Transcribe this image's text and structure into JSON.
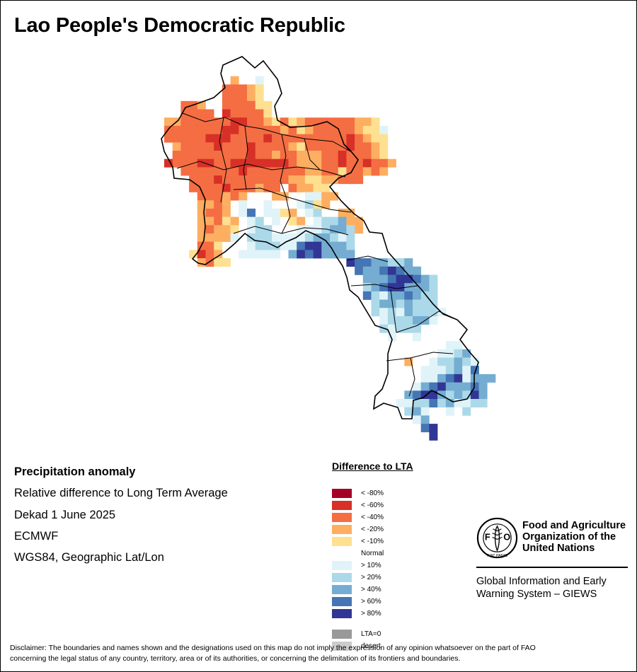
{
  "title": "Lao People's Democratic Republic",
  "info": {
    "heading": "Precipitation anomaly",
    "line1": "Relative difference to Long Term Average",
    "line2": "Dekad 1 June 2025",
    "line3": "ECMWF",
    "line4": "WGS84, Geographic Lat/Lon"
  },
  "legend": {
    "title": "Difference to LTA",
    "classes": [
      {
        "label": "< -80%",
        "color": "#a50026"
      },
      {
        "label": "< -60%",
        "color": "#d73027"
      },
      {
        "label": "< -40%",
        "color": "#f46d43"
      },
      {
        "label": "< -20%",
        "color": "#fdae61"
      },
      {
        "label": "< -10%",
        "color": "#fee090"
      },
      {
        "label": "Normal",
        "color": "#ffffff"
      },
      {
        "label": "> 10%",
        "color": "#e0f3f8"
      },
      {
        "label": "> 20%",
        "color": "#abd9e9"
      },
      {
        "label": "> 40%",
        "color": "#74add1"
      },
      {
        "label": "> 60%",
        "color": "#4575b4"
      },
      {
        "label": "> 80%",
        "color": "#313695"
      }
    ],
    "extra": [
      {
        "label": "LTA=0",
        "color": "#999999"
      },
      {
        "label": "desert",
        "color": "#cccccc"
      }
    ]
  },
  "org": {
    "line1": "Food and Agriculture",
    "line2": "Organization of the",
    "line3": "United Nations",
    "giews1": "Global Information and Early",
    "giews2": "Warning System – GIEWS",
    "logo_letters": "FAO",
    "logo_motto": "FIAT PANIS"
  },
  "disclaimer1": "Disclaimer: The boundaries and names shown and the designations used on this map do not imply the expression of any opinion whatsoever on the part of FAO",
  "disclaimer2": "concerning the legal status of any country, territory, area or of its authorities, or concerning the delimitation of its frontiers and boundaries.",
  "map_grid": {
    "note_key": "class index per cell: 0=<-80 1=<-60 2=<-40 3=<-20 4=<-10 5=Normal 6=>10 7=>20 8=>40 9=>60 10=>80",
    "rows": [
      {
        "r": 0,
        "c0": 8,
        "v": [
          5,
          5,
          5
        ]
      },
      {
        "r": 1,
        "c0": 7,
        "v": [
          5,
          3,
          5,
          5,
          6,
          5
        ]
      },
      {
        "r": 2,
        "c0": 7,
        "v": [
          2,
          2,
          2,
          3,
          4,
          5
        ]
      },
      {
        "r": 3,
        "c0": 7,
        "v": [
          2,
          2,
          2,
          3,
          4,
          5
        ]
      },
      {
        "r": 4,
        "c0": 2,
        "v": [
          2,
          2,
          3,
          5,
          5,
          2,
          2,
          2,
          2,
          4,
          4,
          5
        ]
      },
      {
        "r": 5,
        "c0": 2,
        "v": [
          2,
          2,
          2,
          2,
          5,
          1,
          2,
          2,
          2,
          2,
          4,
          5
        ]
      },
      {
        "r": 6,
        "c0": 0,
        "v": [
          3,
          3,
          2,
          2,
          2,
          2,
          2,
          2,
          1,
          1,
          2,
          2,
          3,
          4,
          2,
          4,
          3,
          2,
          2,
          2,
          2,
          2,
          2,
          3,
          3,
          4
        ]
      },
      {
        "r": 7,
        "c0": 0,
        "v": [
          2,
          2,
          2,
          2,
          2,
          2,
          2,
          1,
          1,
          2,
          2,
          2,
          2,
          2,
          3,
          2,
          4,
          3,
          2,
          2,
          2,
          2,
          2,
          3,
          4,
          4,
          6
        ]
      },
      {
        "r": 8,
        "c0": 0,
        "v": [
          2,
          2,
          2,
          2,
          2,
          1,
          1,
          1,
          2,
          2,
          2,
          2,
          1,
          2,
          2,
          2,
          2,
          2,
          2,
          2,
          2,
          2,
          1,
          2,
          3,
          4,
          4,
          5
        ]
      },
      {
        "r": 9,
        "c0": 0,
        "v": [
          5,
          3,
          2,
          2,
          2,
          2,
          1,
          2,
          2,
          2,
          1,
          2,
          2,
          2,
          2,
          3,
          4,
          2,
          2,
          2,
          2,
          2,
          1,
          2,
          2,
          3,
          4,
          5
        ]
      },
      {
        "r": 10,
        "c0": 1,
        "v": [
          2,
          2,
          2,
          2,
          2,
          2,
          2,
          2,
          2,
          1,
          2,
          2,
          3,
          2,
          2,
          3,
          3,
          3,
          2,
          2,
          1,
          2,
          2,
          2,
          3,
          4
        ]
      },
      {
        "r": 11,
        "c0": 0,
        "v": [
          1,
          2,
          2,
          2,
          1,
          1,
          2,
          2,
          1,
          1,
          1,
          1,
          1,
          1,
          1,
          2,
          3,
          3,
          3,
          2,
          2,
          1,
          2,
          2,
          1,
          2,
          2,
          3
        ]
      },
      {
        "r": 12,
        "c0": 2,
        "v": [
          2,
          2,
          2,
          2,
          2,
          2,
          2,
          1,
          2,
          2,
          2,
          2,
          2,
          2,
          2,
          3,
          3,
          2,
          2,
          4,
          2,
          2,
          3,
          2,
          3
        ]
      },
      {
        "r": 13,
        "c0": 3,
        "v": [
          2,
          2,
          2,
          1,
          2,
          2,
          2,
          2,
          2,
          2,
          2,
          2,
          3,
          3,
          4,
          4,
          3,
          3,
          2,
          2,
          2
        ]
      },
      {
        "r": 14,
        "c0": 3,
        "v": [
          2,
          2,
          2,
          2,
          1,
          2,
          2,
          2,
          3,
          2,
          2,
          5,
          2,
          3,
          3,
          4,
          4
        ]
      },
      {
        "r": 15,
        "c0": 4,
        "v": [
          2,
          2,
          2,
          3,
          2,
          3,
          5,
          5,
          5,
          3,
          3,
          5,
          5,
          6,
          6,
          3,
          3
        ]
      },
      {
        "r": 16,
        "c0": 4,
        "v": [
          3,
          3,
          2,
          3,
          5,
          6,
          5,
          5,
          6,
          5,
          5,
          5,
          6,
          7,
          4,
          3,
          5
        ]
      },
      {
        "r": 17,
        "c0": 4,
        "v": [
          3,
          2,
          2,
          3,
          5,
          6,
          9,
          5,
          6,
          6,
          4,
          3,
          5,
          6,
          7,
          5,
          5,
          3,
          3
        ]
      },
      {
        "r": 18,
        "c0": 4,
        "v": [
          3,
          3,
          2,
          4,
          3,
          5,
          6,
          7,
          5,
          6,
          5,
          4,
          3,
          5,
          6,
          7,
          7,
          8,
          3,
          3
        ]
      },
      {
        "r": 19,
        "c0": 4,
        "v": [
          3,
          2,
          3,
          3,
          4,
          5,
          6,
          7,
          7,
          5,
          5,
          5,
          6,
          6,
          6,
          7,
          8,
          8,
          7,
          3
        ]
      },
      {
        "r": 20,
        "c0": 4,
        "v": [
          3,
          3,
          3,
          3,
          6,
          5,
          7,
          7,
          7,
          6,
          6,
          6,
          6,
          7,
          8,
          8,
          7,
          6,
          7
        ]
      },
      {
        "r": 21,
        "c0": 4,
        "v": [
          2,
          2,
          4,
          5,
          5,
          5,
          6,
          7,
          7,
          7,
          6,
          6,
          9,
          10,
          10,
          8,
          8,
          8,
          7
        ]
      },
      {
        "r": 22,
        "c0": 3,
        "v": [
          4,
          1,
          2,
          3,
          5,
          5,
          6,
          6,
          6,
          6,
          6,
          5,
          8,
          10,
          9,
          10,
          8,
          8,
          8,
          8
        ]
      },
      {
        "r": 23,
        "c0": 4,
        "v": [
          3,
          2,
          4,
          4
        ]
      },
      {
        "r": 23,
        "c0": 22,
        "v": [
          10,
          9,
          9,
          8,
          8,
          7,
          7,
          8
        ]
      },
      {
        "r": 24,
        "c0": 23,
        "v": [
          9,
          8,
          8,
          9,
          10,
          9,
          8,
          8
        ]
      },
      {
        "r": 25,
        "c0": 24,
        "v": [
          8,
          8,
          8,
          9,
          10,
          10,
          9,
          8,
          7
        ]
      },
      {
        "r": 26,
        "c0": 24,
        "v": [
          7,
          8,
          9,
          10,
          10,
          8,
          8,
          8,
          7
        ]
      },
      {
        "r": 27,
        "c0": 24,
        "v": [
          9,
          7,
          6,
          8,
          8,
          9,
          8,
          7,
          7
        ]
      },
      {
        "r": 28,
        "c0": 25,
        "v": [
          7,
          8,
          8,
          7,
          8,
          7,
          7,
          7
        ]
      },
      {
        "r": 29,
        "c0": 25,
        "v": [
          7,
          6,
          7,
          6,
          8,
          7,
          7,
          7,
          6
        ]
      },
      {
        "r": 30,
        "c0": 26,
        "v": [
          6,
          7,
          7,
          7,
          8,
          8,
          6
        ]
      },
      {
        "r": 31,
        "c0": 26,
        "v": [
          7,
          6,
          7,
          7,
          7,
          5,
          5
        ]
      },
      {
        "r": 32,
        "c0": 27,
        "v": [
          6,
          5,
          5,
          6,
          5,
          5,
          5,
          5,
          5
        ]
      },
      {
        "r": 33,
        "c0": 28,
        "v": [
          5,
          5,
          5,
          5,
          5,
          5,
          6,
          6
        ]
      },
      {
        "r": 34,
        "c0": 29,
        "v": [
          5,
          5,
          5,
          5,
          6,
          6,
          7,
          8
        ]
      },
      {
        "r": 35,
        "c0": 29,
        "v": [
          3,
          5,
          5,
          6,
          7,
          7,
          8,
          7,
          6
        ]
      },
      {
        "r": 36,
        "c0": 29,
        "v": [
          5,
          5,
          6,
          6,
          6,
          7,
          8,
          6,
          9
        ]
      },
      {
        "r": 37,
        "c0": 29,
        "v": [
          5,
          5,
          6,
          6,
          8,
          9,
          10,
          6,
          8,
          8,
          8
        ]
      },
      {
        "r": 38,
        "c0": 28,
        "v": [
          5,
          5,
          6,
          8,
          9,
          10,
          8,
          8,
          8,
          9,
          8
        ]
      },
      {
        "r": 39,
        "c0": 28,
        "v": [
          5,
          8,
          9,
          10,
          10,
          8,
          7,
          8,
          7,
          10,
          8
        ]
      },
      {
        "r": 40,
        "c0": 28,
        "v": [
          6,
          6,
          7,
          7,
          9,
          7,
          8,
          6,
          6,
          7,
          7
        ]
      },
      {
        "r": 41,
        "c0": 29,
        "v": [
          7,
          8,
          6,
          5,
          5,
          6,
          5,
          7
        ]
      },
      {
        "r": 42,
        "c0": 30,
        "v": [
          6,
          8,
          5,
          5,
          5
        ]
      },
      {
        "r": 43,
        "c0": 31,
        "v": [
          9,
          10
        ]
      },
      {
        "r": 44,
        "c0": 32,
        "v": [
          10
        ]
      }
    ]
  }
}
